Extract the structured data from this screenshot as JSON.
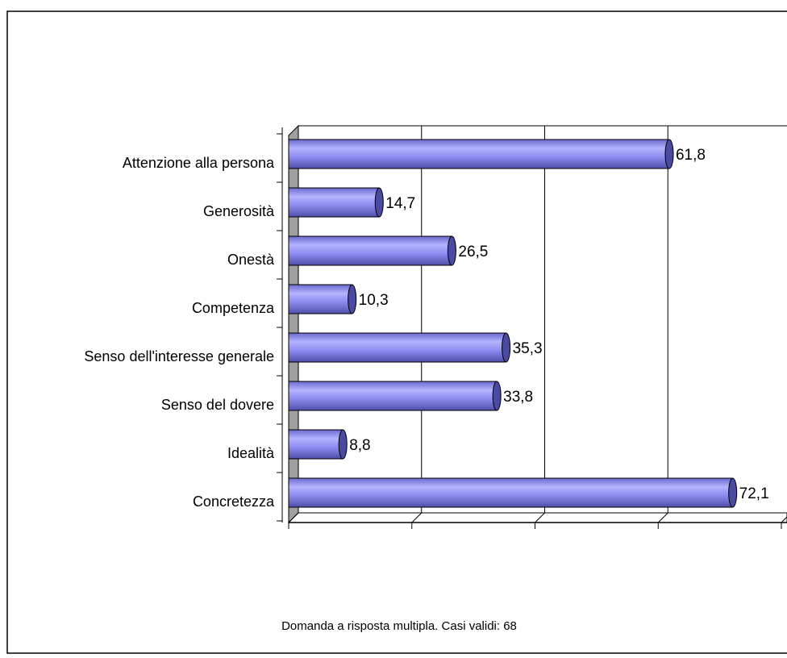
{
  "chart_data": {
    "type": "bar",
    "orientation": "horizontal",
    "note": "Domanda a risposta multipla. Casi validi: 68",
    "categories": [
      "Attenzione alla persona",
      "Generosità",
      "Onestà",
      "Competenza",
      "Senso dell'interesse generale",
      "Senso del dovere",
      "Idealità",
      "Concretezza"
    ],
    "values": [
      61.8,
      14.7,
      26.5,
      10.3,
      35.3,
      33.8,
      8.8,
      72.1
    ],
    "value_labels": [
      "61,8",
      "14,7",
      "26,5",
      "10,3",
      "35,3",
      "33,8",
      "8,8",
      "72,1"
    ],
    "color": "#8c8cf0",
    "xlim": [
      0,
      80
    ],
    "xticks": [
      0,
      20,
      40,
      60,
      80
    ],
    "grid": true
  }
}
